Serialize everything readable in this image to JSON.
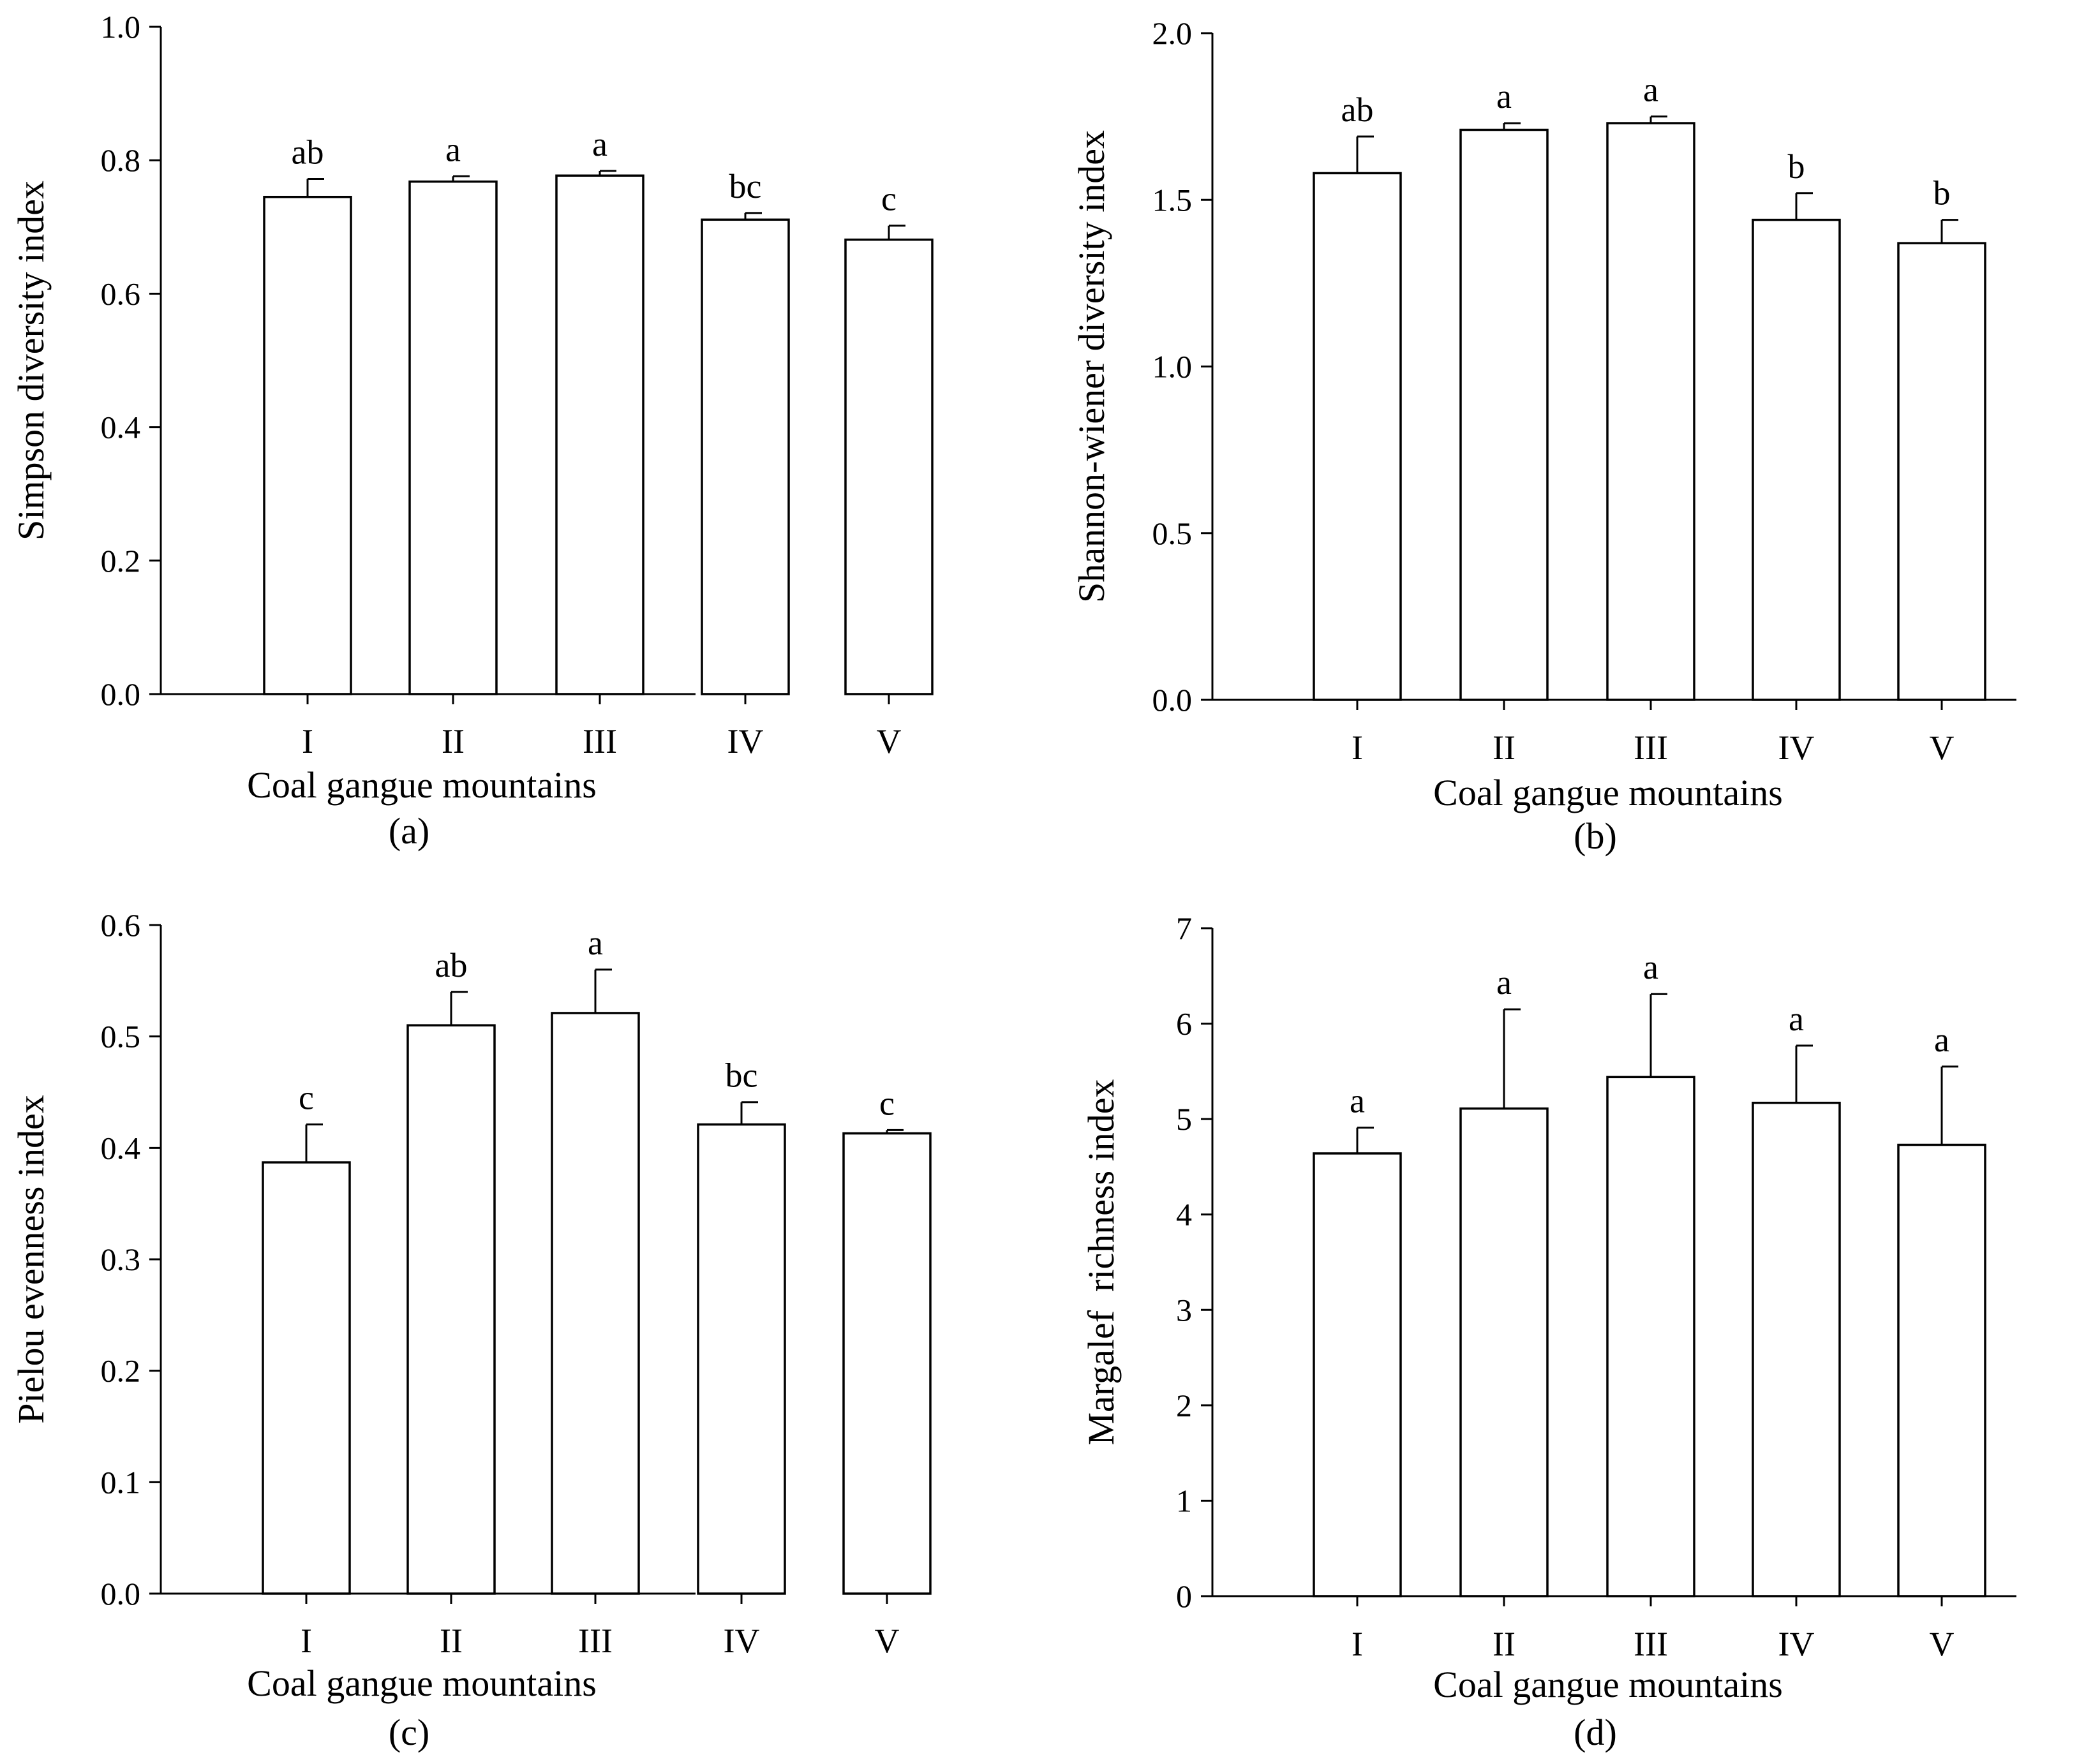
{
  "chart_data": [
    {
      "type": "bar",
      "panel": "(a)",
      "title": "",
      "xlabel": "Coal gangue mountains",
      "ylabel": "Simpson diversity index",
      "categories": [
        "I",
        "II",
        "III",
        "IV",
        "V"
      ],
      "values": [
        0.745,
        0.768,
        0.777,
        0.711,
        0.681
      ],
      "errors": [
        0.027,
        0.008,
        0.007,
        0.01,
        0.021
      ],
      "significance": [
        "ab",
        "a",
        "a",
        "bc",
        "c"
      ],
      "ylim": [
        0,
        1.0
      ],
      "yticks": [
        0.0,
        0.2,
        0.4,
        0.6,
        0.8,
        1.0
      ],
      "ytick_labels": [
        "0.0",
        "0.2",
        "0.4",
        "0.6",
        "0.8",
        "1.0"
      ]
    },
    {
      "type": "bar",
      "panel": "(b)",
      "title": "",
      "xlabel": "Coal gangue mountains",
      "ylabel": "Shannon-wiener diversity index",
      "categories": [
        "I",
        "II",
        "III",
        "IV",
        "V"
      ],
      "values": [
        1.58,
        1.71,
        1.73,
        1.44,
        1.37
      ],
      "errors": [
        0.11,
        0.02,
        0.02,
        0.08,
        0.07
      ],
      "significance": [
        "ab",
        "a",
        "a",
        "b",
        "b"
      ],
      "ylim": [
        0,
        2.0
      ],
      "yticks": [
        0.0,
        0.5,
        1.0,
        1.5,
        2.0
      ],
      "ytick_labels": [
        "0.0",
        "0.5",
        "1.0",
        "1.5",
        "2.0"
      ]
    },
    {
      "type": "bar",
      "panel": "(c)",
      "title": "",
      "xlabel": "Coal gangue mountains",
      "ylabel": "Pielou evenness index",
      "categories": [
        "I",
        "II",
        "III",
        "IV",
        "V"
      ],
      "values": [
        0.387,
        0.51,
        0.521,
        0.421,
        0.413
      ],
      "errors": [
        0.034,
        0.03,
        0.039,
        0.02,
        0.003
      ],
      "significance": [
        "c",
        "ab",
        "a",
        "bc",
        "c"
      ],
      "ylim": [
        0,
        0.6
      ],
      "yticks": [
        0.0,
        0.1,
        0.2,
        0.3,
        0.4,
        0.5,
        0.6
      ],
      "ytick_labels": [
        "0.0",
        "0.1",
        "0.2",
        "0.3",
        "0.4",
        "0.5",
        "0.6"
      ]
    },
    {
      "type": "bar",
      "panel": "(d)",
      "title": "",
      "xlabel": "Coal gangue mountains",
      "ylabel": "Margalef  richness index",
      "categories": [
        "I",
        "II",
        "III",
        "IV",
        "V"
      ],
      "values": [
        4.64,
        5.11,
        5.44,
        5.17,
        4.73
      ],
      "errors": [
        0.27,
        1.04,
        0.87,
        0.6,
        0.82
      ],
      "significance": [
        "a",
        "a",
        "a",
        "a",
        "a"
      ],
      "ylim": [
        0,
        7
      ],
      "yticks": [
        0,
        1,
        2,
        3,
        4,
        5,
        6,
        7
      ],
      "ytick_labels": [
        "0",
        "1",
        "2",
        "3",
        "4",
        "5",
        "6",
        "7"
      ]
    }
  ]
}
